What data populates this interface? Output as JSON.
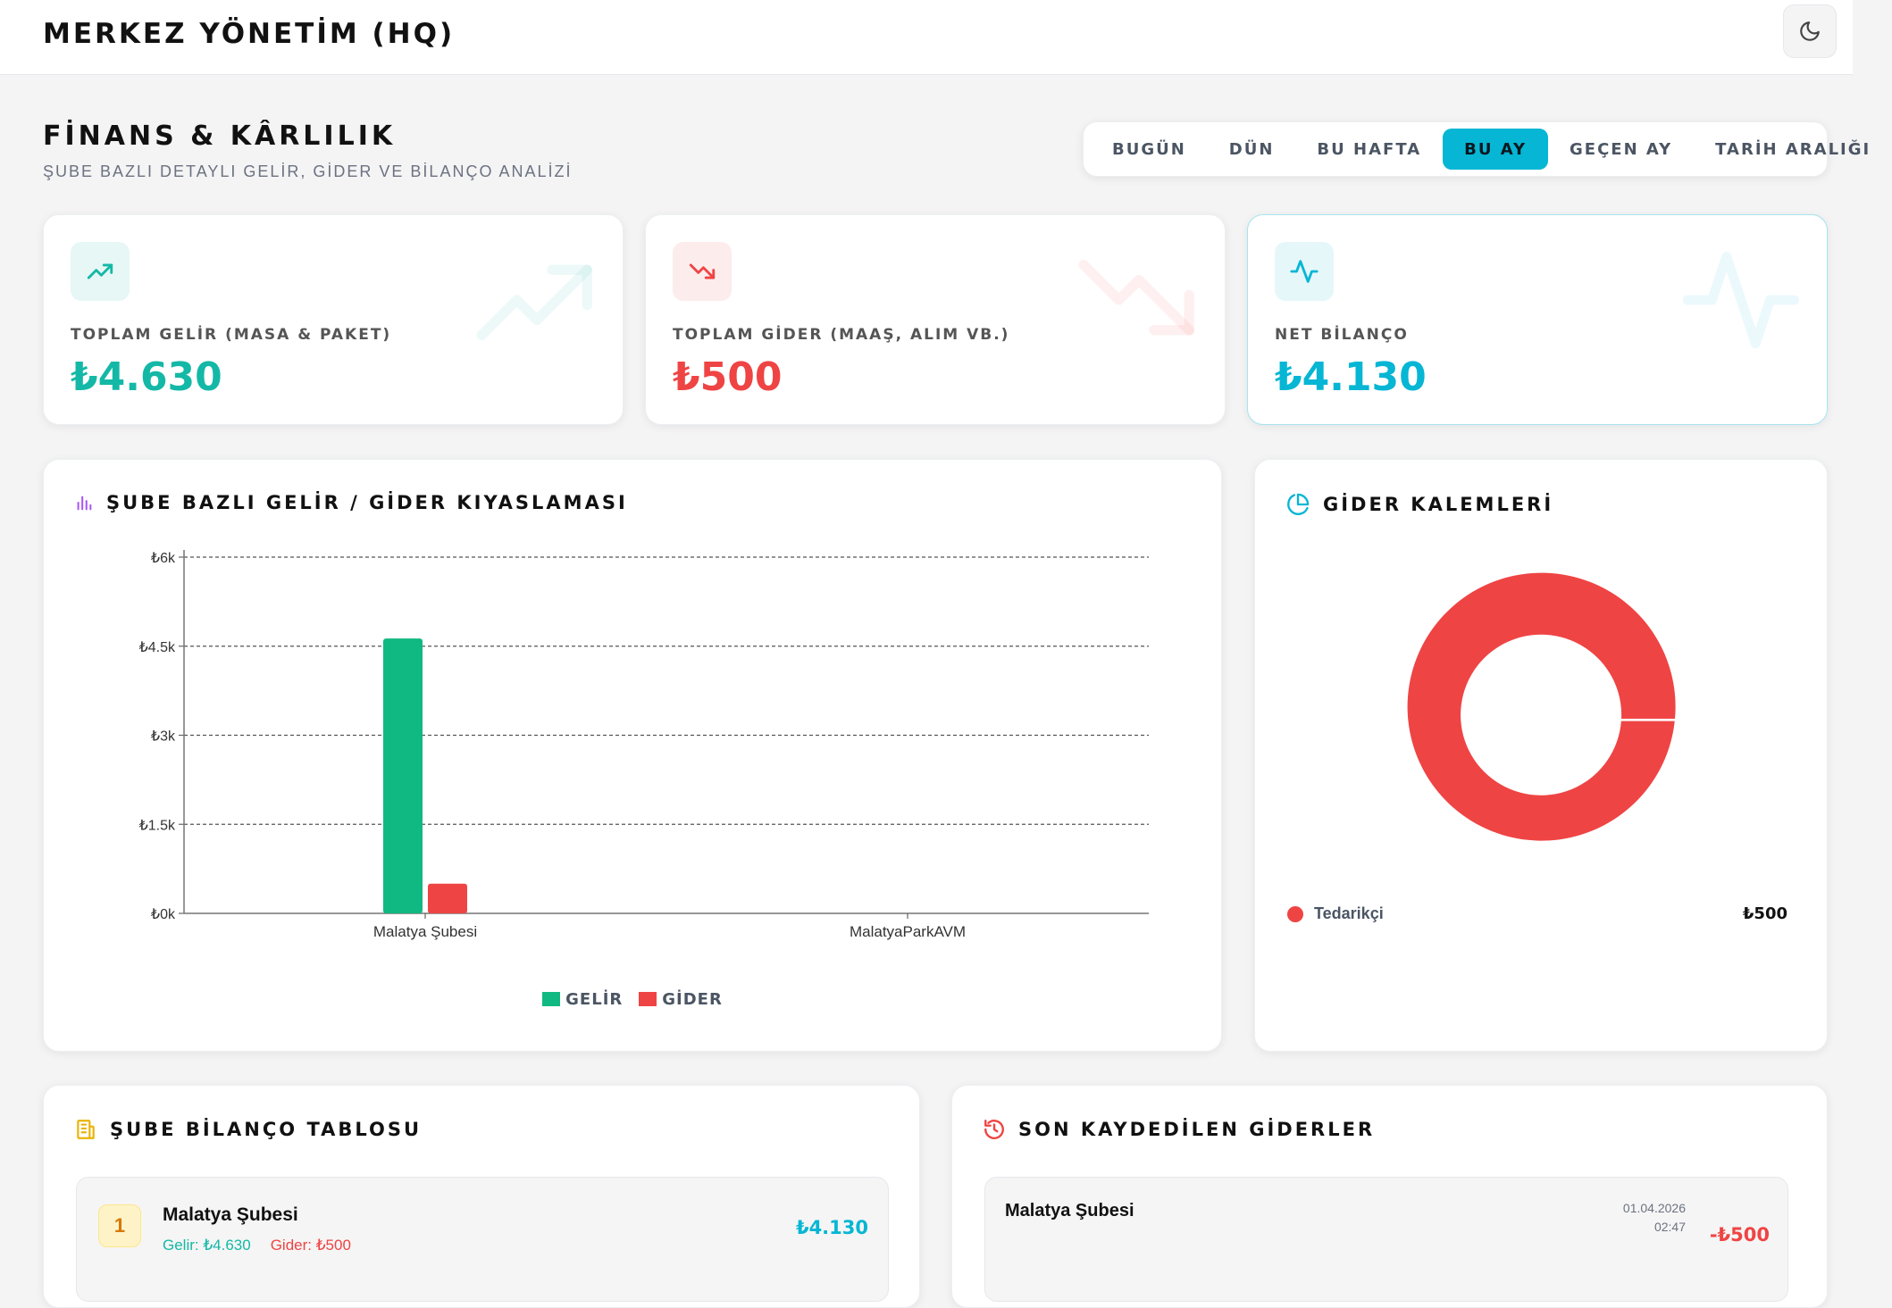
{
  "header": {
    "brand": "MERKEZ YÖNETİM (HQ)",
    "theme_icon": "moon-icon"
  },
  "page": {
    "title": "FİNANS & KÂRLILIK",
    "subtitle": "ŞUBE BAZLI DETAYLI GELİR, GİDER VE BİLANÇO ANALİZİ"
  },
  "date_filters": {
    "items": [
      "BUGÜN",
      "DÜN",
      "BU HAFTA",
      "BU AY",
      "GEÇEN AY",
      "TARİH ARALIĞI"
    ],
    "active": "BU AY"
  },
  "stats": {
    "income": {
      "label": "TOPLAM GELİR (MASA & PAKET)",
      "value": "₺4.630",
      "color": "#14b8a6",
      "icon": "trending-up-icon"
    },
    "expense": {
      "label": "TOPLAM GİDER (MAAŞ, ALIM VB.)",
      "value": "₺500",
      "color": "#ef4444",
      "icon": "trending-down-icon"
    },
    "net": {
      "label": "NET BİLANÇO",
      "value": "₺4.130",
      "color": "#06b6d4",
      "icon": "activity-icon"
    }
  },
  "branch_chart": {
    "title": "ŞUBE BAZLI GELİR / GİDER KIYASLAMASI",
    "icon": "bar-chart-icon",
    "legend": {
      "income": "GELİR",
      "expense": "GİDER"
    }
  },
  "chart_data": {
    "type": "bar",
    "categories": [
      "Malatya Şubesi",
      "MalatyaParkAVM"
    ],
    "series": [
      {
        "name": "GELİR",
        "values": [
          4630,
          0
        ],
        "color": "#10b981"
      },
      {
        "name": "GİDER",
        "values": [
          500,
          0
        ],
        "color": "#ef4444"
      }
    ],
    "ylim": [
      0,
      6000
    ],
    "yticks": [
      {
        "value": 0,
        "label": "₺0k"
      },
      {
        "value": 1500,
        "label": "₺1.5k"
      },
      {
        "value": 3000,
        "label": "₺3k"
      },
      {
        "value": 4500,
        "label": "₺4.5k"
      },
      {
        "value": 6000,
        "label": "₺6k"
      }
    ],
    "grid": true,
    "legend_position": "bottom"
  },
  "expense_items": {
    "title": "GİDER KALEMLERİ",
    "icon": "pie-chart-icon",
    "items": [
      {
        "name": "Tedarikçi",
        "amount": "₺500",
        "value": 500,
        "color": "#ef4444"
      }
    ]
  },
  "branch_table": {
    "title": "ŞUBE BİLANÇO TABLOSU",
    "icon": "building-icon",
    "rows": [
      {
        "rank": "1",
        "name": "Malatya Şubesi",
        "income": "Gelir: ₺4.630",
        "expense": "Gider: ₺500",
        "net": "₺4.130"
      }
    ]
  },
  "recent_expenses": {
    "title": "SON KAYDEDİLEN GİDERLER",
    "icon": "history-icon",
    "rows": [
      {
        "branch": "Malatya Şubesi",
        "date": "01.04.2026",
        "time": "02:47",
        "amount": "-₺500"
      }
    ]
  }
}
